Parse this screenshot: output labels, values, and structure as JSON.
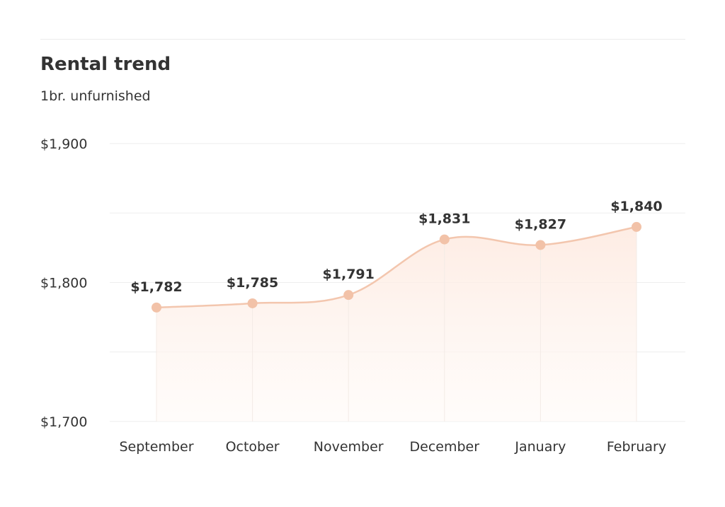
{
  "header": {
    "title": "Rental trend",
    "subtitle": "1br. unfurnished"
  },
  "colors": {
    "line": "#f3c6ae",
    "marker": "#f2c2a8",
    "area_top": "#fde9df",
    "area_bottom": "#fffaf7",
    "grid": "#eeeeee",
    "text": "#333333"
  },
  "chart_data": {
    "type": "area",
    "title": "Rental trend",
    "subtitle": "1br. unfurnished",
    "categories": [
      "September",
      "October",
      "November",
      "December",
      "January",
      "February"
    ],
    "values": [
      1782,
      1785,
      1791,
      1831,
      1827,
      1840
    ],
    "data_labels": [
      "$1,782",
      "$1,785",
      "$1,791",
      "$1,831",
      "$1,827",
      "$1,840"
    ],
    "ylim": [
      1700,
      1900
    ],
    "yticks": [
      1700,
      1800,
      1900
    ],
    "ytick_labels": [
      "$1,700",
      "$1,800",
      "$1,900"
    ],
    "grid": true,
    "xlabel": "",
    "ylabel": ""
  }
}
